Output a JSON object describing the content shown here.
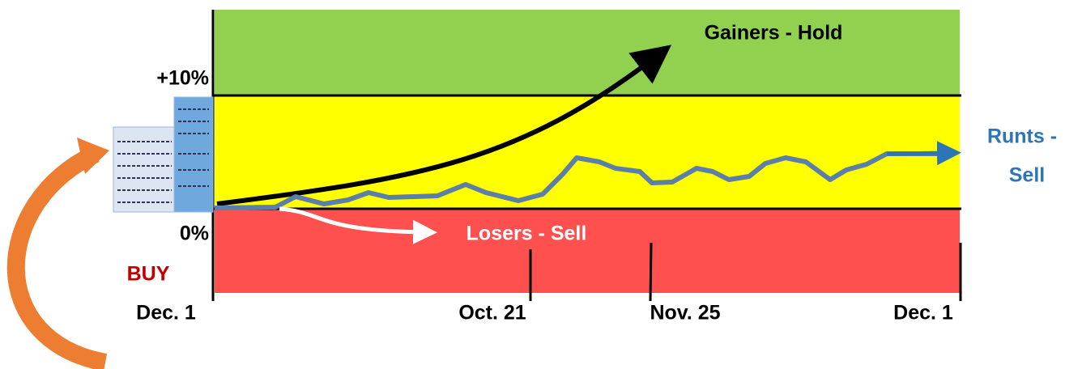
{
  "y_labels": {
    "top": "+10%",
    "bottom": "0%"
  },
  "action": "BUY",
  "x_labels": [
    "Dec. 1",
    "Oct. 21",
    "Nov. 25",
    "Dec. 1"
  ],
  "zones": {
    "gainers": "Gainers - Hold",
    "runts": [
      "Runts -",
      "Sell"
    ],
    "losers": "Losers - Sell"
  }
}
